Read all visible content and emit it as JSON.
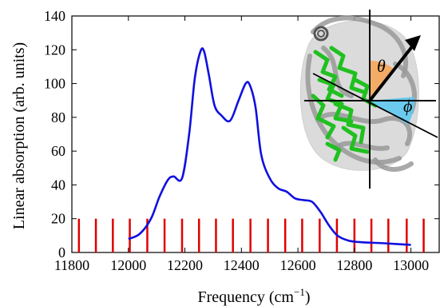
{
  "chart_data": {
    "type": "line",
    "xlabel": "Frequency (cm",
    "xlabel_sup": "−1",
    "xlabel_close": ")",
    "ylabel": "Linear absorption (arb. units)",
    "xlim": [
      11800,
      13100
    ],
    "ylim": [
      0,
      140
    ],
    "xticks": [
      11800,
      12000,
      12200,
      12400,
      12600,
      12800,
      13000
    ],
    "yticks": [
      0,
      20,
      40,
      60,
      80,
      100,
      120,
      140
    ],
    "grid": false,
    "series": [
      {
        "color": "#1010e0",
        "x": [
          12000,
          12040,
          12080,
          12110,
          12140,
          12160,
          12190,
          12215,
          12235,
          12255,
          12268,
          12285,
          12305,
          12330,
          12360,
          12390,
          12415,
          12430,
          12450,
          12470,
          12500,
          12530,
          12560,
          12590,
          12620,
          12650,
          12680,
          12710,
          12740,
          12780,
          12830,
          12900,
          13000
        ],
        "y": [
          8,
          11,
          20,
          33,
          43,
          45,
          44,
          70,
          103,
          119,
          119,
          105,
          87,
          81,
          78,
          90,
          100,
          99,
          86,
          58,
          44,
          38,
          36,
          32,
          31,
          30,
          24,
          16,
          10,
          7,
          6,
          5.5,
          4.5
        ]
      }
    ],
    "sticks": {
      "color": "#e00000",
      "height": 20,
      "x": [
        11825,
        11885,
        11945,
        12005,
        12067,
        12128,
        12190,
        12250,
        12310,
        12370,
        12432,
        12494,
        12555,
        12615,
        12677,
        12738,
        12800,
        12860,
        12920,
        12985,
        13045
      ]
    },
    "inset": {
      "theta_label": "θ",
      "phi_label": "ϕ",
      "theta_color": "#f5a659",
      "phi_color": "#5ec8f0",
      "arrow_color": "#000000",
      "protein_colors": [
        "#9a9a9a",
        "#20c020"
      ]
    }
  }
}
